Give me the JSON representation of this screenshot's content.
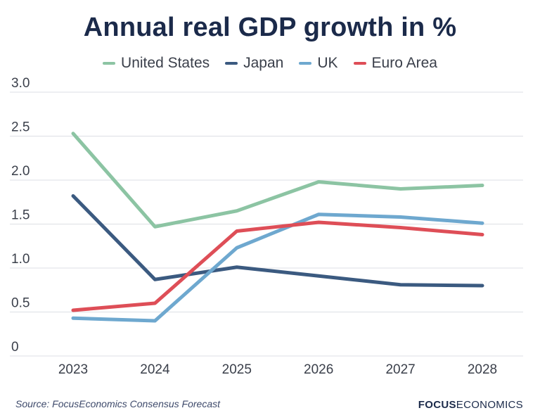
{
  "chart_data": {
    "type": "line",
    "title": "Annual real GDP growth in %",
    "x": [
      "2023",
      "2024",
      "2025",
      "2026",
      "2027",
      "2028"
    ],
    "ylim": [
      0,
      3.0
    ],
    "yticks": [
      "0",
      "0.5",
      "1.0",
      "1.5",
      "2.0",
      "2.5",
      "3.0"
    ],
    "ytick_values": [
      0,
      0.5,
      1.0,
      1.5,
      2.0,
      2.5,
      3.0
    ],
    "grid": true,
    "legend_position": "top-center",
    "series": [
      {
        "name": "United States",
        "color": "#8cc4a3",
        "values": [
          2.53,
          1.47,
          1.65,
          1.98,
          1.9,
          1.94
        ]
      },
      {
        "name": "Japan",
        "color": "#3b5a80",
        "values": [
          1.82,
          0.87,
          1.01,
          0.91,
          0.81,
          0.8
        ]
      },
      {
        "name": "UK",
        "color": "#6ea8cf",
        "values": [
          0.43,
          0.4,
          1.23,
          1.61,
          1.58,
          1.51
        ]
      },
      {
        "name": "Euro Area",
        "color": "#de4e57",
        "values": [
          0.52,
          0.6,
          1.42,
          1.52,
          1.46,
          1.38
        ]
      }
    ]
  },
  "footer": {
    "source": "Source: FocusEconomics Consensus Forecast",
    "brand_bold": "FOCUS",
    "brand_light": "ECONOMICS"
  }
}
